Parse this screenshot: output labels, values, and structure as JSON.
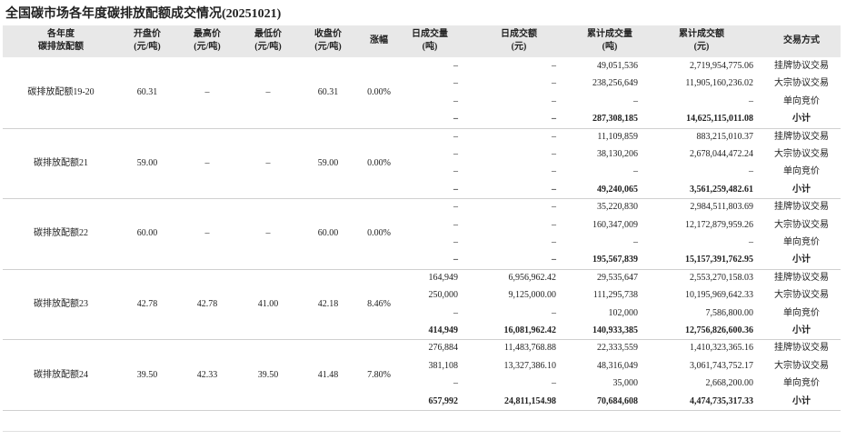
{
  "header": {
    "title": "全国碳市场各年度碳排放配额成交情况(20251021)"
  },
  "table": {
    "columns": [
      [
        "各年度",
        "碳排放配额"
      ],
      [
        "开盘价",
        "(元/吨)"
      ],
      [
        "最高价",
        "(元/吨)"
      ],
      [
        "最低价",
        "(元/吨)"
      ],
      [
        "收盘价",
        "(元/吨)"
      ],
      [
        "涨幅"
      ],
      [
        "日成交量",
        "(吨)"
      ],
      [
        "日成交额",
        "(元)"
      ],
      [
        "累计成交量",
        "(吨)"
      ],
      [
        "累计成交额",
        "(元)"
      ],
      [
        "交易方式"
      ]
    ],
    "groups": [
      {
        "cells": [
          "碳排放配额19-20",
          "60.31",
          "–",
          "–",
          "60.31",
          "0.00%"
        ],
        "rows": [
          [
            "–",
            "–",
            "49,051,536",
            "2,719,954,775.06",
            "挂牌协议交易"
          ],
          [
            "–",
            "–",
            "238,256,649",
            "11,905,160,236.02",
            "大宗协议交易"
          ],
          [
            "–",
            "–",
            "–",
            "–",
            "单向竞价"
          ],
          [
            "–",
            "–",
            "287,308,185",
            "14,625,115,011.08",
            "小计"
          ]
        ]
      },
      {
        "cells": [
          "碳排放配额21",
          "59.00",
          "–",
          "–",
          "59.00",
          "0.00%"
        ],
        "rows": [
          [
            "–",
            "–",
            "11,109,859",
            "883,215,010.37",
            "挂牌协议交易"
          ],
          [
            "–",
            "–",
            "38,130,206",
            "2,678,044,472.24",
            "大宗协议交易"
          ],
          [
            "–",
            "–",
            "–",
            "–",
            "单向竞价"
          ],
          [
            "–",
            "–",
            "49,240,065",
            "3,561,259,482.61",
            "小计"
          ]
        ]
      },
      {
        "cells": [
          "碳排放配额22",
          "60.00",
          "–",
          "–",
          "60.00",
          "0.00%"
        ],
        "rows": [
          [
            "–",
            "–",
            "35,220,830",
            "2,984,511,803.69",
            "挂牌协议交易"
          ],
          [
            "–",
            "–",
            "160,347,009",
            "12,172,879,959.26",
            "大宗协议交易"
          ],
          [
            "–",
            "–",
            "–",
            "–",
            "单向竞价"
          ],
          [
            "–",
            "–",
            "195,567,839",
            "15,157,391,762.95",
            "小计"
          ]
        ]
      },
      {
        "cells": [
          "碳排放配额23",
          "42.78",
          "42.78",
          "41.00",
          "42.18",
          "8.46%"
        ],
        "rows": [
          [
            "164,949",
            "6,956,962.42",
            "29,535,647",
            "2,553,270,158.03",
            "挂牌协议交易"
          ],
          [
            "250,000",
            "9,125,000.00",
            "111,295,738",
            "10,195,969,642.33",
            "大宗协议交易"
          ],
          [
            "–",
            "–",
            "102,000",
            "7,586,800.00",
            "单向竞价"
          ],
          [
            "414,949",
            "16,081,962.42",
            "140,933,385",
            "12,756,826,600.36",
            "小计"
          ]
        ]
      },
      {
        "cells": [
          "碳排放配额24",
          "39.50",
          "42.33",
          "39.50",
          "41.48",
          "7.80%"
        ],
        "rows": [
          [
            "276,884",
            "11,483,768.88",
            "22,333,559",
            "1,410,323,365.16",
            "挂牌协议交易"
          ],
          [
            "381,108",
            "13,327,386.10",
            "48,316,049",
            "3,061,743,752.17",
            "大宗协议交易"
          ],
          [
            "–",
            "–",
            "35,000",
            "2,668,200.00",
            "单向竞价"
          ],
          [
            "657,992",
            "24,811,154.98",
            "70,684,608",
            "4,474,735,317.33",
            "小计"
          ]
        ]
      }
    ]
  }
}
